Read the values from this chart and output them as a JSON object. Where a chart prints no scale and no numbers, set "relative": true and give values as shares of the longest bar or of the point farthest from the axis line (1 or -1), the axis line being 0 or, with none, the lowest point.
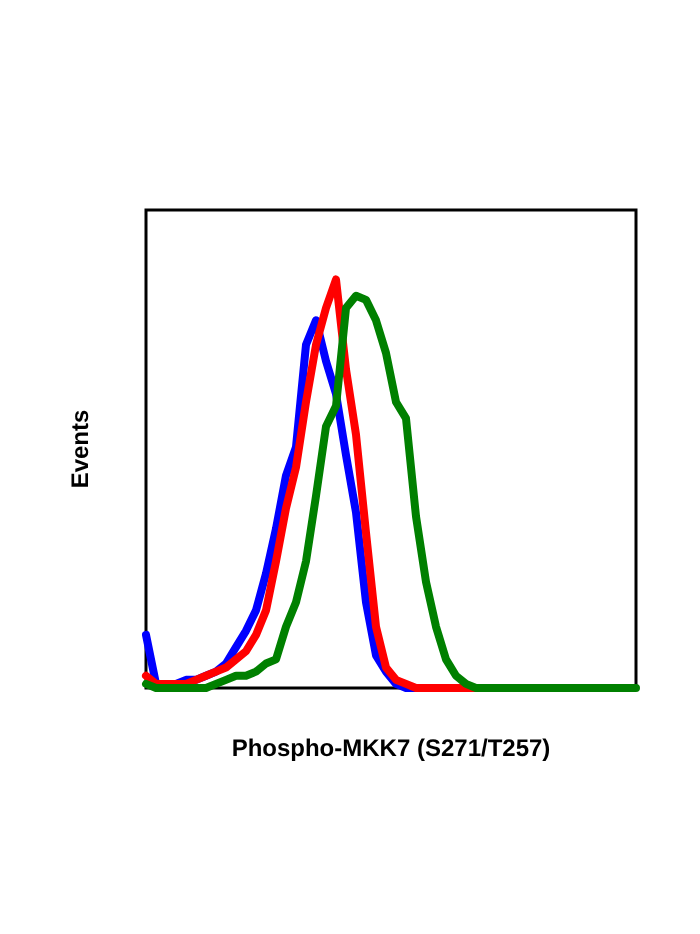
{
  "chart_data": {
    "type": "line",
    "relative": true,
    "xlabel": "Phospho-MKK7 (S271/T257)",
    "ylabel": "Events",
    "marker": "none",
    "line_style": "solid",
    "categories": [
      null,
      null,
      null,
      null,
      null,
      null,
      null,
      null,
      null,
      null,
      null,
      null,
      null,
      null,
      null,
      null,
      null,
      null,
      null,
      null,
      null,
      null,
      null,
      null,
      null,
      null,
      null,
      null,
      null,
      null,
      null,
      null,
      null,
      null,
      null,
      null,
      null,
      null,
      null,
      null,
      null,
      null,
      null,
      null,
      null,
      null,
      null,
      null,
      null,
      null
    ],
    "series": [
      {
        "color": "#0000ff",
        "values": [
          0.13,
          0.01,
          0.01,
          0.01,
          0.02,
          0.02,
          0.03,
          0.04,
          0.06,
          0.1,
          0.14,
          0.19,
          0.28,
          0.39,
          0.52,
          0.59,
          0.84,
          0.9,
          0.8,
          0.72,
          0.57,
          0.43,
          0.21,
          0.08,
          0.04,
          0.01,
          0,
          0,
          0,
          null,
          null,
          null,
          null,
          null,
          null,
          null,
          null,
          null,
          null,
          null,
          null,
          null,
          null,
          null,
          null,
          null,
          null,
          null,
          null,
          null
        ]
      },
      {
        "color": "#ff0000",
        "values": [
          0.03,
          0.01,
          0.01,
          0.01,
          0.01,
          0.02,
          0.03,
          0.04,
          0.05,
          0.07,
          0.09,
          0.13,
          0.19,
          0.31,
          0.44,
          0.54,
          0.7,
          0.84,
          0.93,
          1.0,
          0.78,
          0.62,
          0.38,
          0.15,
          0.05,
          0.02,
          0.01,
          0,
          0,
          0,
          0,
          0,
          0,
          0,
          0,
          null,
          null,
          null,
          null,
          null,
          null,
          null,
          null,
          null,
          null,
          null,
          null,
          null,
          null,
          null
        ]
      },
      {
        "color": "#008000",
        "values": [
          0.01,
          0,
          0,
          0,
          0,
          0,
          0,
          0.01,
          0.02,
          0.03,
          0.03,
          0.04,
          0.06,
          0.07,
          0.15,
          0.21,
          0.31,
          0.47,
          0.64,
          0.69,
          0.93,
          0.96,
          0.95,
          0.9,
          0.82,
          0.7,
          0.66,
          0.42,
          0.26,
          0.15,
          0.07,
          0.03,
          0.01,
          0,
          0,
          0,
          0,
          0,
          0,
          0,
          0,
          0,
          0,
          0,
          0,
          0,
          0,
          0,
          0,
          0
        ]
      }
    ]
  }
}
